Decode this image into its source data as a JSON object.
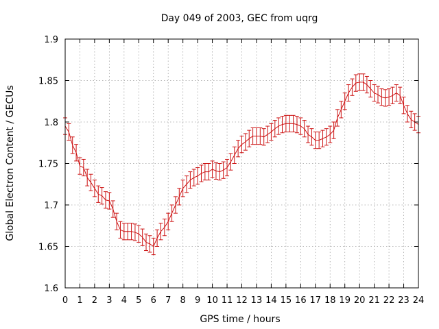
{
  "chart_data": {
    "type": "line",
    "title": "Day 049 of 2003, GEC from uqrg",
    "xlabel": "GPS time / hours",
    "ylabel": "Global Electron Content / GECUs",
    "xlim": [
      0,
      24
    ],
    "ylim": [
      1.6,
      1.9
    ],
    "x_ticks": [
      0,
      1,
      2,
      3,
      4,
      5,
      6,
      7,
      8,
      9,
      10,
      11,
      12,
      13,
      14,
      15,
      16,
      17,
      18,
      19,
      20,
      21,
      22,
      23,
      24
    ],
    "y_ticks": [
      1.6,
      1.65,
      1.7,
      1.75,
      1.8,
      1.85,
      1.9
    ],
    "y_tick_labels": [
      "1.6",
      "1.65",
      "1.7",
      "1.75",
      "1.8",
      "1.85",
      "1.9"
    ],
    "grid": true,
    "error_bar": 0.01,
    "color": "#cc1111",
    "series": [
      {
        "x": [
          0,
          0.25,
          0.5,
          0.75,
          1,
          1.25,
          1.5,
          1.75,
          2,
          2.25,
          2.5,
          2.75,
          3,
          3.25,
          3.5,
          3.75,
          4,
          4.25,
          4.5,
          4.75,
          5,
          5.25,
          5.5,
          5.75,
          6,
          6.25,
          6.5,
          6.75,
          7,
          7.25,
          7.5,
          7.75,
          8,
          8.25,
          8.5,
          8.75,
          9,
          9.25,
          9.5,
          9.75,
          10,
          10.25,
          10.5,
          10.75,
          11,
          11.25,
          11.5,
          11.75,
          12,
          12.25,
          12.5,
          12.75,
          13,
          13.25,
          13.5,
          13.75,
          14,
          14.25,
          14.5,
          14.75,
          15,
          15.25,
          15.5,
          15.75,
          16,
          16.25,
          16.5,
          16.75,
          17,
          17.25,
          17.5,
          17.75,
          18,
          18.25,
          18.5,
          18.75,
          19,
          19.25,
          19.5,
          19.75,
          20,
          20.25,
          20.5,
          20.75,
          21,
          21.25,
          21.5,
          21.75,
          22,
          22.25,
          22.5,
          22.75,
          23,
          23.25,
          23.5,
          23.75,
          24
        ],
        "values": [
          1.795,
          1.788,
          1.772,
          1.763,
          1.747,
          1.745,
          1.733,
          1.727,
          1.72,
          1.713,
          1.711,
          1.706,
          1.705,
          1.695,
          1.68,
          1.67,
          1.668,
          1.668,
          1.668,
          1.667,
          1.665,
          1.661,
          1.655,
          1.653,
          1.65,
          1.66,
          1.668,
          1.673,
          1.68,
          1.69,
          1.7,
          1.71,
          1.72,
          1.725,
          1.73,
          1.733,
          1.735,
          1.738,
          1.74,
          1.74,
          1.743,
          1.741,
          1.74,
          1.742,
          1.745,
          1.752,
          1.76,
          1.768,
          1.773,
          1.776,
          1.78,
          1.783,
          1.783,
          1.783,
          1.782,
          1.785,
          1.788,
          1.792,
          1.795,
          1.797,
          1.798,
          1.798,
          1.798,
          1.797,
          1.795,
          1.792,
          1.785,
          1.782,
          1.778,
          1.778,
          1.78,
          1.782,
          1.785,
          1.79,
          1.805,
          1.815,
          1.825,
          1.835,
          1.842,
          1.847,
          1.848,
          1.848,
          1.845,
          1.84,
          1.835,
          1.833,
          1.83,
          1.829,
          1.83,
          1.832,
          1.835,
          1.832,
          1.82,
          1.81,
          1.803,
          1.8,
          1.797
        ]
      }
    ]
  }
}
